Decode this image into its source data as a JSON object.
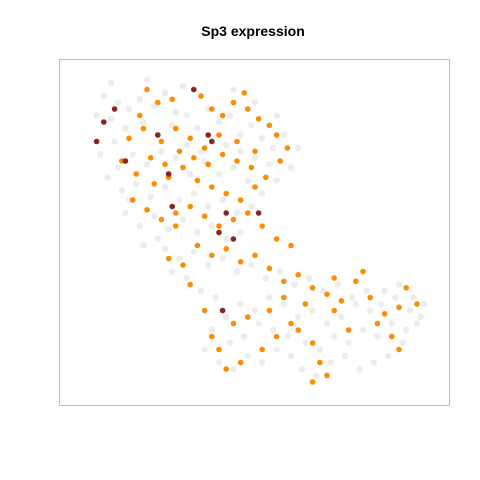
{
  "chart_data": {
    "type": "scatter",
    "title": "Sp3 expression",
    "xlabel": "",
    "ylabel": "",
    "axes_visible": false,
    "grid": false,
    "legend": "none",
    "xlim": [
      0,
      100
    ],
    "ylim": [
      0,
      100
    ],
    "colors": {
      "none": "#ececec",
      "mid": "#ff8c00",
      "high": "#8b2323",
      "frame": "#bebebe"
    },
    "series": [
      {
        "level": "none",
        "points": [
          [
            8,
            92
          ],
          [
            12,
            90
          ],
          [
            15,
            88
          ],
          [
            18,
            91
          ],
          [
            22,
            89
          ],
          [
            25,
            93
          ],
          [
            28,
            87
          ],
          [
            10,
            85
          ],
          [
            14,
            82
          ],
          [
            19,
            84
          ],
          [
            23,
            80
          ],
          [
            27,
            83
          ],
          [
            31,
            86
          ],
          [
            34,
            82
          ],
          [
            37,
            88
          ],
          [
            40,
            84
          ],
          [
            43,
            86
          ],
          [
            46,
            80
          ],
          [
            49,
            83
          ],
          [
            52,
            79
          ],
          [
            55,
            76
          ],
          [
            54,
            71
          ],
          [
            50,
            73
          ],
          [
            46,
            75
          ],
          [
            42,
            77
          ],
          [
            38,
            79
          ],
          [
            35,
            75
          ],
          [
            31,
            77
          ],
          [
            28,
            73
          ],
          [
            24,
            75
          ],
          [
            20,
            71
          ],
          [
            16,
            74
          ],
          [
            12,
            70
          ],
          [
            9,
            67
          ],
          [
            13,
            63
          ],
          [
            17,
            65
          ],
          [
            21,
            61
          ],
          [
            25,
            64
          ],
          [
            29,
            60
          ],
          [
            33,
            62
          ],
          [
            37,
            58
          ],
          [
            41,
            60
          ],
          [
            45,
            56
          ],
          [
            49,
            58
          ],
          [
            52,
            62
          ],
          [
            48,
            66
          ],
          [
            44,
            70
          ],
          [
            40,
            68
          ],
          [
            36,
            72
          ],
          [
            32,
            68
          ],
          [
            26,
            68
          ],
          [
            14,
            56
          ],
          [
            18,
            52
          ],
          [
            22,
            55
          ],
          [
            26,
            51
          ],
          [
            30,
            54
          ],
          [
            34,
            50
          ],
          [
            38,
            52
          ],
          [
            42,
            48
          ],
          [
            46,
            50
          ],
          [
            25,
            45
          ],
          [
            29,
            42
          ],
          [
            33,
            44
          ],
          [
            37,
            40
          ],
          [
            41,
            42
          ],
          [
            45,
            38
          ],
          [
            49,
            40
          ],
          [
            53,
            36
          ],
          [
            57,
            38
          ],
          [
            61,
            34
          ],
          [
            65,
            36
          ],
          [
            69,
            32
          ],
          [
            73,
            34
          ],
          [
            77,
            30
          ],
          [
            81,
            32
          ],
          [
            85,
            28
          ],
          [
            89,
            30
          ],
          [
            93,
            26
          ],
          [
            96,
            24
          ],
          [
            92,
            20
          ],
          [
            88,
            22
          ],
          [
            84,
            18
          ],
          [
            80,
            20
          ],
          [
            76,
            16
          ],
          [
            72,
            18
          ],
          [
            68,
            14
          ],
          [
            64,
            16
          ],
          [
            60,
            12
          ],
          [
            56,
            14
          ],
          [
            52,
            10
          ],
          [
            48,
            12
          ],
          [
            44,
            8
          ],
          [
            40,
            10
          ],
          [
            36,
            14
          ],
          [
            38,
            20
          ],
          [
            42,
            24
          ],
          [
            46,
            28
          ],
          [
            50,
            26
          ],
          [
            54,
            30
          ],
          [
            58,
            28
          ],
          [
            62,
            24
          ],
          [
            66,
            26
          ],
          [
            70,
            22
          ],
          [
            74,
            24
          ],
          [
            78,
            28
          ],
          [
            82,
            26
          ],
          [
            86,
            32
          ],
          [
            90,
            34
          ],
          [
            94,
            30
          ],
          [
            97,
            28
          ],
          [
            95,
            22
          ],
          [
            91,
            16
          ],
          [
            87,
            12
          ],
          [
            83,
            10
          ],
          [
            79,
            8
          ],
          [
            75,
            12
          ],
          [
            71,
            10
          ],
          [
            67,
            6
          ],
          [
            63,
            8
          ],
          [
            59,
            18
          ],
          [
            55,
            20
          ],
          [
            51,
            22
          ],
          [
            47,
            18
          ],
          [
            43,
            16
          ],
          [
            39,
            30
          ],
          [
            35,
            32
          ],
          [
            31,
            36
          ],
          [
            27,
            38
          ],
          [
            23,
            48
          ],
          [
            19,
            46
          ],
          [
            15,
            60
          ],
          [
            11,
            78
          ],
          [
            7,
            74
          ],
          [
            6,
            86
          ],
          [
            10,
            96
          ],
          [
            20,
            97
          ],
          [
            30,
            95
          ],
          [
            44,
            94
          ],
          [
            50,
            90
          ],
          [
            56,
            86
          ],
          [
            58,
            80
          ],
          [
            56,
            66
          ],
          [
            60,
            70
          ],
          [
            62,
            76
          ]
        ]
      },
      {
        "level": "mid",
        "points": [
          [
            20,
            94
          ],
          [
            23,
            90
          ],
          [
            27,
            91
          ],
          [
            35,
            92
          ],
          [
            38,
            88
          ],
          [
            41,
            86
          ],
          [
            44,
            90
          ],
          [
            47,
            93
          ],
          [
            51,
            85
          ],
          [
            56,
            80
          ],
          [
            59,
            76
          ],
          [
            57,
            72
          ],
          [
            50,
            75
          ],
          [
            45,
            78
          ],
          [
            40,
            80
          ],
          [
            36,
            76
          ],
          [
            32,
            79
          ],
          [
            28,
            82
          ],
          [
            24,
            78
          ],
          [
            19,
            82
          ],
          [
            15,
            79
          ],
          [
            13,
            72
          ],
          [
            17,
            68
          ],
          [
            22,
            65
          ],
          [
            26,
            67
          ],
          [
            30,
            70
          ],
          [
            34,
            66
          ],
          [
            38,
            64
          ],
          [
            42,
            62
          ],
          [
            46,
            60
          ],
          [
            50,
            64
          ],
          [
            53,
            67
          ],
          [
            49,
            70
          ],
          [
            45,
            72
          ],
          [
            41,
            74
          ],
          [
            37,
            71
          ],
          [
            33,
            73
          ],
          [
            29,
            75
          ],
          [
            25,
            71
          ],
          [
            21,
            73
          ],
          [
            16,
            60
          ],
          [
            20,
            57
          ],
          [
            24,
            54
          ],
          [
            28,
            56
          ],
          [
            32,
            58
          ],
          [
            36,
            55
          ],
          [
            40,
            52
          ],
          [
            44,
            54
          ],
          [
            48,
            56
          ],
          [
            52,
            52
          ],
          [
            56,
            48
          ],
          [
            60,
            46
          ],
          [
            26,
            42
          ],
          [
            30,
            40
          ],
          [
            34,
            46
          ],
          [
            38,
            43
          ],
          [
            42,
            45
          ],
          [
            46,
            41
          ],
          [
            50,
            43
          ],
          [
            54,
            39
          ],
          [
            58,
            35
          ],
          [
            62,
            37
          ],
          [
            66,
            33
          ],
          [
            70,
            31
          ],
          [
            74,
            29
          ],
          [
            78,
            35
          ],
          [
            82,
            30
          ],
          [
            86,
            25
          ],
          [
            90,
            27
          ],
          [
            92,
            33
          ],
          [
            95,
            28
          ],
          [
            80,
            38
          ],
          [
            72,
            36
          ],
          [
            64,
            28
          ],
          [
            60,
            22
          ],
          [
            56,
            18
          ],
          [
            52,
            14
          ],
          [
            46,
            10
          ],
          [
            42,
            8
          ],
          [
            40,
            14
          ],
          [
            38,
            18
          ],
          [
            44,
            22
          ],
          [
            48,
            24
          ],
          [
            54,
            26
          ],
          [
            58,
            30
          ],
          [
            62,
            20
          ],
          [
            66,
            16
          ],
          [
            68,
            10
          ],
          [
            70,
            6
          ],
          [
            66,
            4
          ],
          [
            72,
            26
          ],
          [
            76,
            20
          ],
          [
            84,
            22
          ],
          [
            88,
            18
          ],
          [
            90,
            14
          ],
          [
            36,
            26
          ],
          [
            28,
            52
          ],
          [
            32,
            34
          ],
          [
            48,
            88
          ],
          [
            54,
            83
          ],
          [
            18,
            86
          ]
        ]
      },
      {
        "level": "high",
        "points": [
          [
            33,
            94
          ],
          [
            8,
            84
          ],
          [
            11,
            88
          ],
          [
            23,
            80
          ],
          [
            14,
            72
          ],
          [
            38,
            78
          ],
          [
            26,
            68
          ],
          [
            27,
            58
          ],
          [
            42,
            56
          ],
          [
            51,
            56
          ],
          [
            44,
            48
          ],
          [
            40,
            50
          ],
          [
            41,
            26
          ],
          [
            37,
            80
          ],
          [
            6,
            78
          ]
        ]
      }
    ]
  }
}
